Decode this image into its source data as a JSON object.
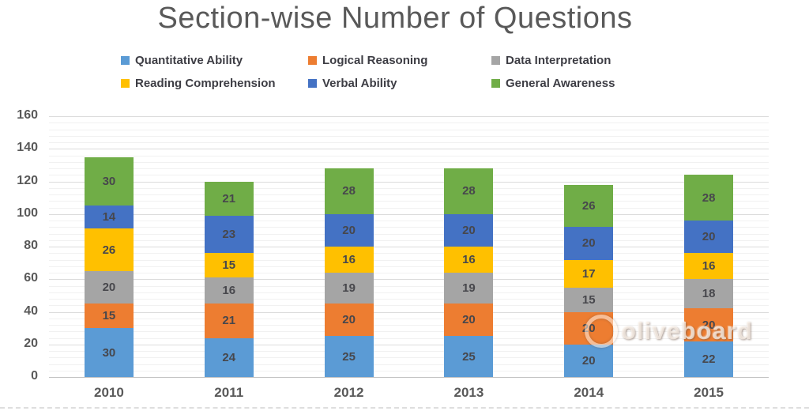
{
  "chart_data": {
    "type": "bar",
    "subtype": "stacked-column",
    "title": "Section-wise Number of Questions",
    "xlabel": "",
    "ylabel": "",
    "categories": [
      "2010",
      "2011",
      "2012",
      "2013",
      "2014",
      "2015"
    ],
    "series": [
      {
        "name": "Quantitative Ability",
        "color": "#5B9BD5",
        "values": [
          30,
          24,
          25,
          25,
          20,
          22
        ]
      },
      {
        "name": "Logical Reasoning",
        "color": "#ED7D31",
        "values": [
          15,
          21,
          20,
          20,
          20,
          20
        ]
      },
      {
        "name": "Data Interpretation",
        "color": "#A5A5A5",
        "values": [
          20,
          16,
          19,
          19,
          15,
          18
        ]
      },
      {
        "name": "Reading Comprehension",
        "color": "#FFC000",
        "values": [
          26,
          15,
          16,
          16,
          17,
          16
        ]
      },
      {
        "name": "Verbal Ability",
        "color": "#4472C4",
        "values": [
          14,
          23,
          20,
          20,
          20,
          20
        ]
      },
      {
        "name": "General Awareness",
        "color": "#70AD47",
        "values": [
          30,
          21,
          28,
          28,
          26,
          28
        ]
      }
    ],
    "stack_order_bottom_to_top": [
      "Quantitative Ability",
      "Logical Reasoning",
      "Data Interpretation",
      "Reading Comprehension",
      "Verbal Ability",
      "General Awareness"
    ],
    "bar_totals": [
      135,
      120,
      128,
      128,
      118,
      124
    ],
    "yticks": [
      0,
      20,
      40,
      60,
      80,
      100,
      120,
      140,
      160
    ],
    "ylim": [
      0,
      160
    ],
    "minor_grid_step": 4,
    "grid": true,
    "legend_position": "top",
    "data_labels": true,
    "label_color": "#47474c",
    "axis_text_color": "#595959",
    "title_color": "#595959"
  },
  "watermark": {
    "text": "oliveboard"
  }
}
